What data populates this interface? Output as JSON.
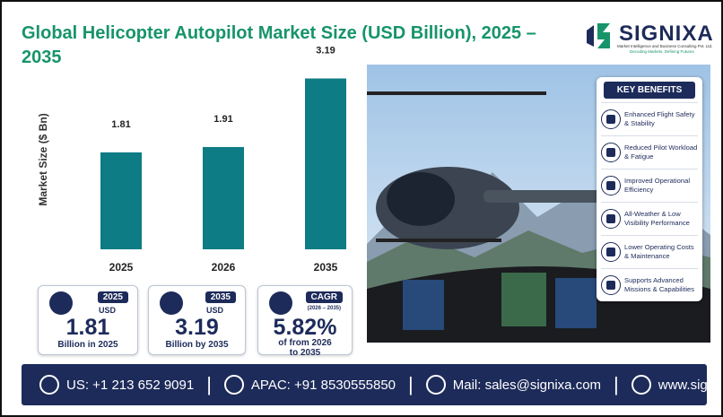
{
  "header": {
    "title": "Global Helicopter Autopilot Market Size (USD Billion), 2025 – 2035",
    "logo": {
      "name": "SIGNIXA",
      "tagline": "Market Intelligence and Business Consulting Pvt. Ltd.",
      "slogan": "Decoding Markets, Defining Futures"
    }
  },
  "chart_data": {
    "type": "bar",
    "ylabel": "Market Size ($ Bn)",
    "categories": [
      "2025",
      "2026",
      "2035"
    ],
    "values": [
      1.81,
      1.91,
      3.19
    ],
    "color": "#0d7c84",
    "ylim": [
      0,
      3.5
    ]
  },
  "stats": [
    {
      "badge": "2025",
      "unit": "USD",
      "value": "1.81",
      "caption": "Billion in 2025"
    },
    {
      "badge": "2035",
      "unit": "USD",
      "value": "3.19",
      "caption": "Billion by 2035"
    },
    {
      "badge": "CAGR",
      "unit": "(2026 – 2035)",
      "value": "5.82%",
      "caption": "of from 2026 to 2035"
    }
  ],
  "benefits": {
    "title": "KEY BENEFITS",
    "items": [
      "Enhanced Flight Safety & Stability",
      "Reduced Pilot Workload & Fatigue",
      "Improved Operational Efficiency",
      "All-Weather & Low Visibility Performance",
      "Lower Operating Costs & Maintenance",
      "Supports Advanced Missions & Capabilities"
    ]
  },
  "footer": {
    "contacts": [
      "US: +1 213 652 9091",
      "APAC: +91 8530555850",
      "Mail: sales@signixa.com",
      "www.signixa.com"
    ]
  }
}
